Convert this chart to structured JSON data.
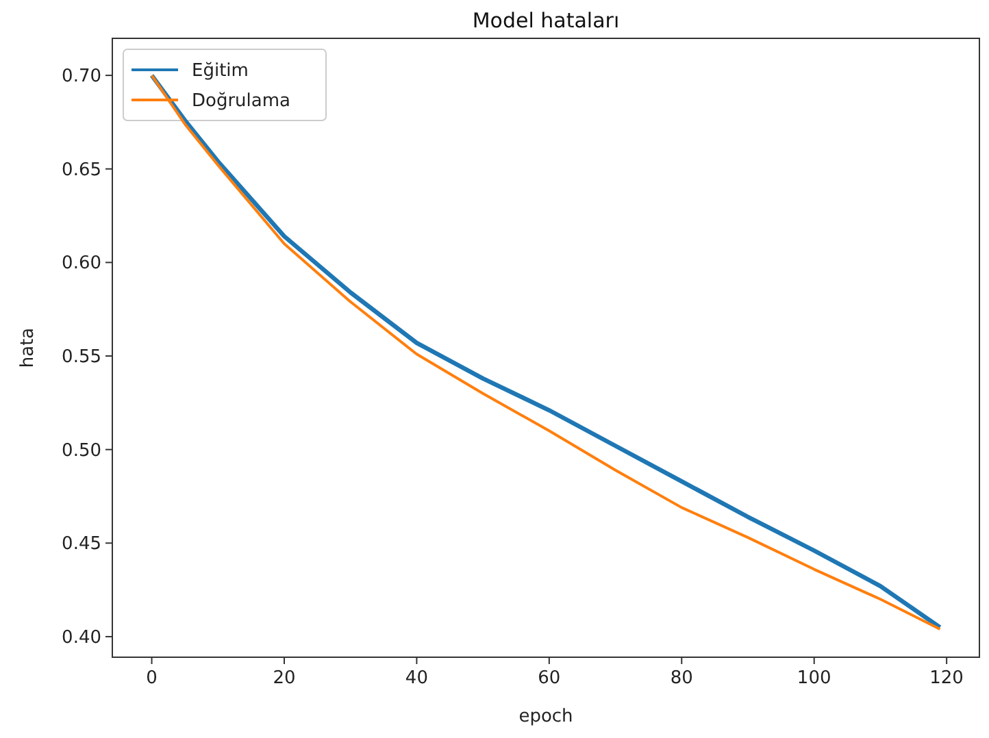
{
  "chart_data": {
    "type": "line",
    "title": "Model hataları",
    "xlabel": "epoch",
    "ylabel": "hata",
    "x": [
      0,
      5,
      10,
      20,
      30,
      40,
      50,
      60,
      70,
      80,
      90,
      100,
      110,
      119
    ],
    "series": [
      {
        "name": "Eğitim",
        "color": "#1f77b4",
        "values": [
          0.7,
          0.676,
          0.654,
          0.614,
          0.584,
          0.557,
          0.538,
          0.521,
          0.502,
          0.483,
          0.464,
          0.446,
          0.427,
          0.405
        ]
      },
      {
        "name": "Doğrulama",
        "color": "#ff7f0e",
        "values": [
          0.7,
          0.674,
          0.652,
          0.61,
          0.579,
          0.551,
          0.53,
          0.51,
          0.489,
          0.469,
          0.453,
          0.436,
          0.42,
          0.404
        ]
      }
    ],
    "xlim": [
      -5.95,
      124.95
    ],
    "ylim": [
      0.389,
      0.7198
    ],
    "xticks": [
      0,
      20,
      40,
      60,
      80,
      100,
      120
    ],
    "yticks": [
      {
        "value": 0.4,
        "label": "0.40"
      },
      {
        "value": 0.45,
        "label": "0.45"
      },
      {
        "value": 0.5,
        "label": "0.50"
      },
      {
        "value": 0.55,
        "label": "0.55"
      },
      {
        "value": 0.6,
        "label": "0.60"
      },
      {
        "value": 0.65,
        "label": "0.65"
      },
      {
        "value": 0.7,
        "label": "0.70"
      }
    ],
    "grid": false,
    "legend": "top left",
    "line_style": "solid",
    "marker": "none"
  }
}
